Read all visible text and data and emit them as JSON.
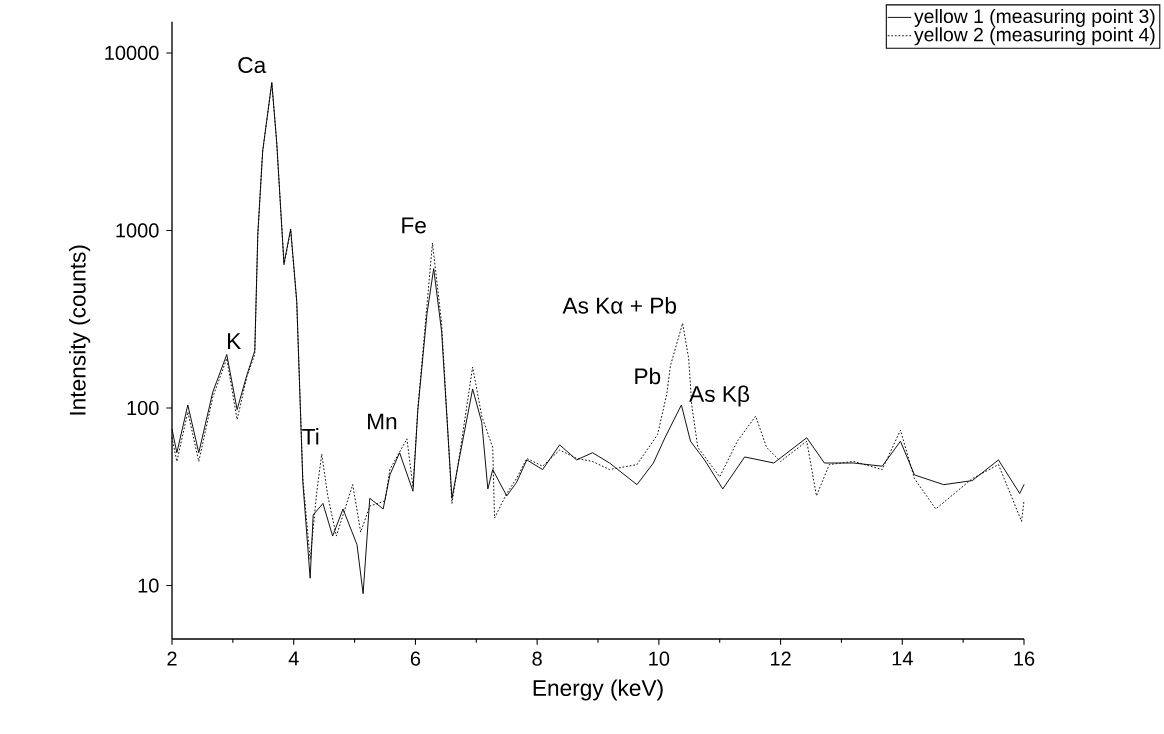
{
  "chart_data": {
    "type": "line",
    "xlabel": "Energy (keV)",
    "ylabel": "Intensity (counts)",
    "xlim": [
      2,
      16
    ],
    "xticks": [
      2,
      4,
      6,
      8,
      10,
      12,
      14,
      16
    ],
    "ylim": [
      5,
      15000
    ],
    "yticks": [
      10,
      100,
      1000,
      10000
    ],
    "log": "y",
    "legend": "top right",
    "series": [
      {
        "name": "yellow 1  (measuring point 3)",
        "color": "#000000",
        "line_style": "solid",
        "x": [
          2.0,
          2.08,
          2.26,
          2.44,
          2.67,
          2.9,
          3.07,
          3.23,
          3.36,
          3.41,
          3.49,
          3.64,
          3.72,
          3.84,
          3.95,
          4.05,
          4.15,
          4.27,
          4.32,
          4.48,
          4.64,
          4.81,
          5.04,
          5.14,
          5.25,
          5.47,
          5.58,
          5.74,
          5.96,
          6.04,
          6.19,
          6.3,
          6.43,
          6.6,
          6.73,
          6.94,
          7.09,
          7.19,
          7.27,
          7.5,
          7.66,
          7.83,
          8.09,
          8.37,
          8.65,
          8.91,
          9.19,
          9.64,
          9.91,
          10.1,
          10.37,
          10.52,
          10.75,
          11.05,
          11.41,
          11.89,
          12.43,
          12.72,
          13.2,
          13.67,
          13.97,
          14.2,
          14.68,
          15.15,
          15.58,
          15.93,
          16.0
        ],
        "values": [
          76,
          56,
          104,
          56,
          123,
          200,
          98,
          153,
          210,
          950,
          2800,
          6800,
          3150,
          650,
          1020,
          400,
          38,
          11,
          25,
          29,
          19,
          27,
          17,
          9,
          31,
          27,
          42,
          56,
          34,
          98,
          340,
          610,
          270,
          31,
          54,
          128,
          83,
          35,
          45,
          32,
          38,
          51,
          45,
          62,
          51,
          56,
          49,
          37,
          49,
          68,
          104,
          65,
          51,
          35,
          53,
          49,
          68,
          49,
          49,
          47,
          65,
          42,
          37,
          39,
          51,
          33,
          37
        ]
      },
      {
        "name": "yellow 2  (measuring point 4)",
        "color": "#000000",
        "line_style": "dotted",
        "x": [
          2.0,
          2.08,
          2.26,
          2.44,
          2.67,
          2.9,
          3.07,
          3.23,
          3.36,
          3.41,
          3.49,
          3.64,
          3.72,
          3.84,
          3.95,
          4.05,
          4.15,
          4.27,
          4.38,
          4.46,
          4.56,
          4.7,
          4.97,
          5.1,
          5.25,
          5.5,
          5.58,
          5.86,
          5.96,
          6.04,
          6.19,
          6.28,
          6.43,
          6.6,
          6.73,
          6.94,
          7.09,
          7.27,
          7.3,
          7.5,
          7.66,
          7.83,
          8.09,
          8.37,
          8.65,
          8.91,
          9.19,
          9.64,
          9.98,
          10.13,
          10.19,
          10.39,
          10.49,
          10.54,
          10.64,
          11.0,
          11.29,
          11.59,
          11.77,
          12.0,
          12.43,
          12.59,
          12.8,
          13.2,
          13.67,
          13.97,
          14.2,
          14.55,
          15.15,
          15.58,
          15.96,
          16.0
        ],
        "values": [
          68,
          50,
          95,
          50,
          115,
          190,
          86,
          150,
          200,
          950,
          2800,
          6800,
          3150,
          640,
          1000,
          390,
          40,
          14,
          34,
          55,
          32,
          19,
          37,
          20,
          28,
          30,
          45,
          67,
          36,
          100,
          380,
          850,
          300,
          29,
          56,
          170,
          90,
          60,
          24,
          33,
          40,
          52,
          47,
          58,
          52,
          50,
          45,
          48,
          71,
          120,
          173,
          300,
          190,
          104,
          60,
          41,
          65,
          90,
          60,
          50,
          65,
          32,
          48,
          50,
          45,
          75,
          40,
          27,
          40,
          48,
          23,
          30
        ]
      }
    ],
    "annotations": [
      {
        "text": "Ca",
        "x": 3.64,
        "y": 6800
      },
      {
        "text": "K",
        "x": 3.23,
        "y": 190
      },
      {
        "text": "Ti",
        "x": 4.52,
        "y": 55
      },
      {
        "text": "Mn",
        "x": 5.8,
        "y": 67
      },
      {
        "text": "Fe",
        "x": 6.28,
        "y": 850
      },
      {
        "text": "Pb",
        "x": 10.13,
        "y": 120
      },
      {
        "text": "As Kα + Pb",
        "x": 10.39,
        "y": 300
      },
      {
        "text": "As Kβ",
        "x": 11.59,
        "y": 90
      }
    ]
  }
}
